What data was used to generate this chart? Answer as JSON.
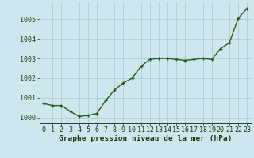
{
  "hours": [
    0,
    1,
    2,
    3,
    4,
    5,
    6,
    7,
    8,
    9,
    10,
    11,
    12,
    13,
    14,
    15,
    16,
    17,
    18,
    19,
    20,
    21,
    22,
    23
  ],
  "pressure": [
    1000.7,
    1000.6,
    1000.6,
    1000.3,
    1000.05,
    1000.1,
    1000.2,
    1000.85,
    1001.4,
    1001.75,
    1002.0,
    1002.6,
    1002.95,
    1003.0,
    1003.0,
    1002.95,
    1002.9,
    1002.95,
    1003.0,
    1002.95,
    1003.5,
    1003.8,
    1005.05,
    1005.55
  ],
  "line_color": "#2d5a1b",
  "marker_color": "#2d5a1b",
  "bg_color": "#cce8ee",
  "grid_color": "#aac8cc",
  "ylabel_values": [
    1000,
    1001,
    1002,
    1003,
    1004,
    1005
  ],
  "xlabel_label": "Graphe pression niveau de la mer (hPa)",
  "ylim": [
    999.7,
    1005.9
  ],
  "xlim": [
    -0.5,
    23.5
  ],
  "title_color": "#1a3a0a",
  "xlabel_fontsize": 6.8,
  "tick_fontsize": 6.0,
  "marker_size": 3.5,
  "line_width": 1.0
}
